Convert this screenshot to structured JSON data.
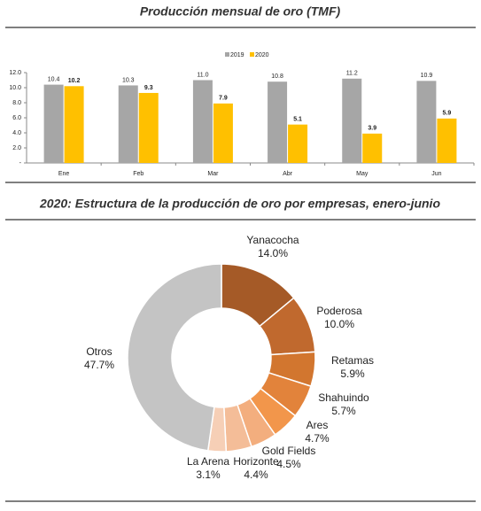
{
  "chart_data": [
    {
      "type": "bar",
      "title": "Producción mensual de oro (TMF)",
      "categories": [
        "Ene",
        "Feb",
        "Mar",
        "Abr",
        "May",
        "Jun"
      ],
      "series": [
        {
          "name": "2019",
          "color": "#a6a6a6",
          "values": [
            10.4,
            10.3,
            11.0,
            10.8,
            11.2,
            10.9
          ],
          "value_labels": [
            "10.4",
            "10.3",
            "11.0",
            "10.8",
            "11.2",
            "10.9"
          ]
        },
        {
          "name": "2020",
          "color": "#ffc000",
          "values": [
            10.2,
            9.3,
            7.9,
            5.1,
            3.9,
            5.9
          ],
          "value_labels": [
            "10.2",
            "9.3",
            "7.9",
            "5.1",
            "3.9",
            "5.9"
          ]
        }
      ],
      "ylim": [
        0,
        12
      ],
      "yticks": [
        {
          "value": 0,
          "label": "-"
        },
        {
          "value": 2,
          "label": "2.0"
        },
        {
          "value": 4,
          "label": "4.0"
        },
        {
          "value": 6,
          "label": "6.0"
        },
        {
          "value": 8,
          "label": "8.0"
        },
        {
          "value": 10,
          "label": "10.0"
        },
        {
          "value": 12,
          "label": "12.0"
        }
      ],
      "grid": false,
      "legend": "top"
    },
    {
      "type": "donut",
      "title": "2020: Estructura de la producción de oro por empresas, enero-junio",
      "categories": [
        "Yanacocha",
        "Poderosa",
        "Retamas",
        "Shahuindo",
        "Ares",
        "Gold Fields",
        "Horizonte",
        "La Arena",
        "Otros"
      ],
      "values": [
        14.0,
        10.0,
        5.9,
        5.7,
        4.7,
        4.5,
        4.4,
        3.1,
        47.7
      ],
      "value_labels": [
        "14.0%",
        "10.0%",
        "5.9%",
        "5.7%",
        "4.7%",
        "4.5%",
        "4.4%",
        "3.1%",
        "47.7%"
      ],
      "colors": [
        "#a55a27",
        "#c0692e",
        "#d2762f",
        "#e2833b",
        "#f2964b",
        "#f3ae7e",
        "#f4bd98",
        "#f6cfb6",
        "#c4c4c4"
      ]
    }
  ]
}
